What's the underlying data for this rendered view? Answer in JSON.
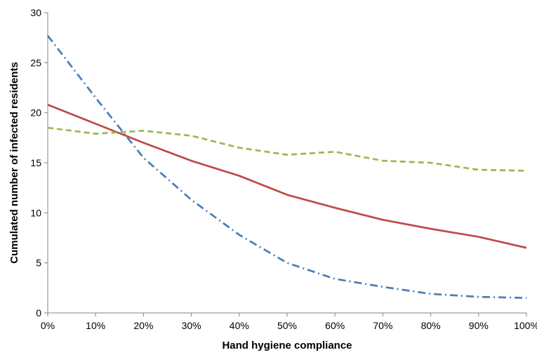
{
  "chart_data": {
    "type": "line",
    "title": "",
    "xlabel": "Hand hygiene compliance",
    "ylabel": "Cumulated number of infected residents",
    "x": [
      "0%",
      "10%",
      "20%",
      "30%",
      "40%",
      "50%",
      "60%",
      "70%",
      "80%",
      "90%",
      "100%"
    ],
    "x_values": [
      0,
      10,
      20,
      30,
      40,
      50,
      60,
      70,
      80,
      90,
      100
    ],
    "yticks": [
      "0",
      "5",
      "10",
      "15",
      "20",
      "25",
      "30"
    ],
    "ylim": [
      0,
      30
    ],
    "xlim": [
      0,
      100
    ],
    "grid": false,
    "legend": "none",
    "series": [
      {
        "values": [
          27.7,
          21.5,
          15.5,
          11.3,
          7.8,
          5.0,
          3.4,
          2.6,
          1.9,
          1.6,
          1.5
        ],
        "color": "#4a7ebb",
        "line_style": "dash-dot"
      },
      {
        "values": [
          20.8,
          18.9,
          17.0,
          15.2,
          13.7,
          11.8,
          10.5,
          9.3,
          8.4,
          7.6,
          6.5
        ],
        "color": "#be4b48",
        "line_style": "solid"
      },
      {
        "values": [
          18.5,
          17.9,
          18.2,
          17.7,
          16.5,
          15.8,
          16.1,
          15.2,
          15.0,
          14.3,
          14.2
        ],
        "color": "#98b954",
        "line_style": "dashed"
      }
    ]
  }
}
